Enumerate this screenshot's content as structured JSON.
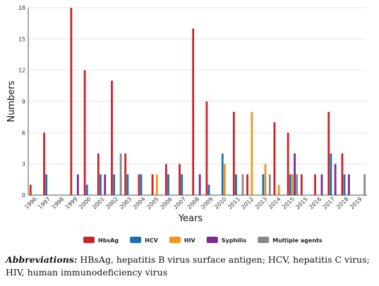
{
  "chart_data": {
    "type": "bar",
    "xlabel": "Years",
    "ylabel": "Numbers",
    "ylim": [
      0,
      18
    ],
    "yticks": [
      0,
      3,
      6,
      9,
      12,
      15,
      18
    ],
    "grid": "horizontal",
    "legend_position": "bottom",
    "categories": [
      "1996",
      "1997",
      "1998",
      "1999",
      "2000",
      "2001",
      "2002",
      "2003",
      "2004",
      "2005",
      "2006",
      "2007",
      "2008",
      "2009",
      "2010",
      "2011",
      "2012",
      "2013",
      "2014",
      "2015",
      "2015",
      "2016",
      "2017",
      "2018",
      "2019"
    ],
    "series": [
      {
        "name": "HbsAg",
        "color": "#cc2229",
        "values": [
          1,
          6,
          0,
          18,
          12,
          4,
          11,
          4,
          2,
          2,
          3,
          3,
          16,
          9,
          0,
          8,
          2,
          0,
          7,
          6,
          2,
          2,
          8,
          4,
          0
        ]
      },
      {
        "name": "HCV",
        "color": "#1f6fb5",
        "values": [
          0,
          2,
          0,
          0,
          1,
          2,
          2,
          2,
          2,
          0,
          2,
          2,
          0,
          1,
          4,
          2,
          0,
          2,
          0,
          2,
          0,
          0,
          4,
          2,
          0
        ]
      },
      {
        "name": "HIV",
        "color": "#f0961e",
        "values": [
          0,
          0,
          0,
          0,
          0,
          0,
          0,
          0,
          0,
          2,
          0,
          0,
          0,
          0,
          3,
          0,
          8,
          3,
          1,
          2,
          0,
          0,
          0,
          0,
          0
        ]
      },
      {
        "name": "Syphilis",
        "color": "#7b2a90",
        "values": [
          0,
          0,
          0,
          2,
          0,
          2,
          0,
          0,
          0,
          0,
          0,
          0,
          2,
          0,
          0,
          0,
          0,
          0,
          0,
          4,
          0,
          2,
          3,
          2,
          0
        ]
      },
      {
        "name": "Multiple agents",
        "color": "#888888",
        "values": [
          0,
          0,
          0,
          0,
          0,
          0,
          4,
          0,
          0,
          0,
          0,
          0,
          0,
          0,
          0,
          2,
          0,
          2,
          0,
          2,
          0,
          0,
          0,
          0,
          2
        ]
      }
    ]
  },
  "caption": {
    "label": "Abbreviations:",
    "text": " HBsAg, hepatitis B virus surface antigen; HCV, hepatitis C virus; HIV, human immunodeficiency virus"
  }
}
